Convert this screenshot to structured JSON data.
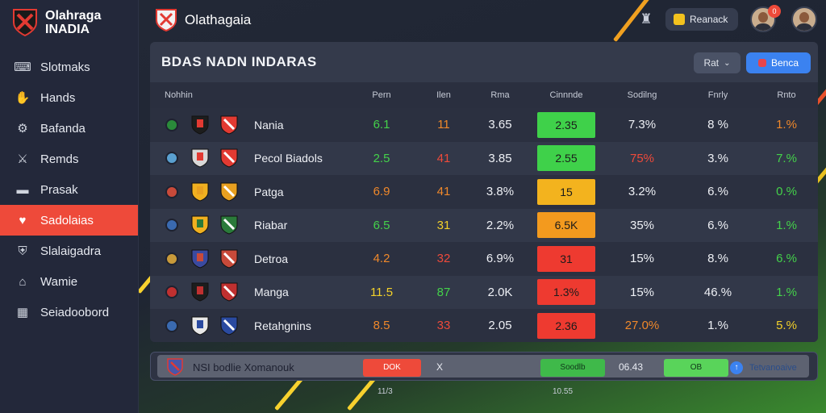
{
  "sidebar": {
    "brand_line1": "Olahraga",
    "brand_line2": "INADIA",
    "items": [
      {
        "label": "Slotmaks",
        "icon": "gamepad-icon"
      },
      {
        "label": "Hands",
        "icon": "hand-icon"
      },
      {
        "label": "Bafanda",
        "icon": "gear-icon"
      },
      {
        "label": "Remds",
        "icon": "sword-icon"
      },
      {
        "label": "Prasak",
        "icon": "card-icon"
      },
      {
        "label": "Sadolaias",
        "icon": "flame-icon",
        "active": true
      },
      {
        "label": "Slalaigadra",
        "icon": "shield-icon"
      },
      {
        "label": "Wamie",
        "icon": "home-icon"
      },
      {
        "label": "Seiadoobord",
        "icon": "board-icon"
      }
    ]
  },
  "topbar": {
    "title": "Olathagaia",
    "button_label": "Reanack",
    "notification_count": "0"
  },
  "panel": {
    "title": "BDAS NADN INDARAS",
    "filter_label": "Rat",
    "primary_label": "Benca",
    "columns": [
      "Nohhin",
      "Pern",
      "Ilen",
      "Rma",
      "Cinnnde",
      "Sodilng",
      "Fnrly",
      "Rnto"
    ],
    "rows": [
      {
        "team": "Nania",
        "pern": "6.1",
        "ilen": "11",
        "rma": "3.65",
        "cinnnde": "2.35",
        "sodilng": "7.3%",
        "fnrly": "8 %",
        "rnto": "1.%",
        "pern_color": "green",
        "ilen_color": "orange",
        "pill_color": "#3fd14a",
        "sodilng_color": "white",
        "rnto_color": "orange"
      },
      {
        "team": "Pecol Biadols",
        "pern": "2.5",
        "ilen": "41",
        "rma": "3.85",
        "cinnnde": "2.55",
        "sodilng": "75%",
        "fnrly": "3.%",
        "rnto": "7.%",
        "pern_color": "green",
        "ilen_color": "red",
        "pill_color": "#3fd14a",
        "sodilng_color": "red",
        "rnto_color": "green"
      },
      {
        "team": "Patga",
        "pern": "6.9",
        "ilen": "41",
        "rma": "3.8%",
        "cinnnde": "15",
        "sodilng": "3.2%",
        "fnrly": "6.%",
        "rnto": "0.%",
        "pern_color": "orange",
        "ilen_color": "orange",
        "pill_color": "#f3b31e",
        "sodilng_color": "white",
        "rnto_color": "green"
      },
      {
        "team": "Riabar",
        "pern": "6.5",
        "ilen": "31",
        "rma": "2.2%",
        "cinnnde": "6.5K",
        "sodilng": "35%",
        "fnrly": "6.%",
        "rnto": "1.%",
        "pern_color": "green",
        "ilen_color": "yellow",
        "pill_color": "#f39a1e",
        "sodilng_color": "white",
        "rnto_color": "green"
      },
      {
        "team": "Detroa",
        "pern": "4.2",
        "ilen": "32",
        "rma": "6.9%",
        "cinnnde": "31",
        "sodilng": "15%",
        "fnrly": "8.%",
        "rnto": "6.%",
        "pern_color": "orange",
        "ilen_color": "red",
        "pill_color": "#ee3a30",
        "sodilng_color": "white",
        "rnto_color": "green"
      },
      {
        "team": "Manga",
        "pern": "11.5",
        "ilen": "87",
        "rma": "2.0K",
        "cinnnde": "1.3%",
        "sodilng": "15%",
        "fnrly": "46.%",
        "rnto": "1.%",
        "pern_color": "yellow",
        "ilen_color": "green",
        "pill_color": "#ee3a30",
        "sodilng_color": "white",
        "rnto_color": "green"
      },
      {
        "team": "Retahgnins",
        "pern": "8.5",
        "ilen": "33",
        "rma": "2.05",
        "cinnnde": "2.36",
        "sodilng": "27.0%",
        "fnrly": "1.%",
        "rnto": "5.%",
        "pern_color": "orange",
        "ilen_color": "red",
        "pill_color": "#ee3a30",
        "sodilng_color": "orange",
        "rnto_color": "yellow"
      }
    ]
  },
  "bottom": {
    "label": "NSI bodlie Xomanouk",
    "red_label": "DOK",
    "x_label": "X",
    "green_label": "Soodlb",
    "num_label": "06.43",
    "green2_label": "OB",
    "link_label": "Tetvanoaive",
    "foot1": "11/3",
    "foot2": "10.55"
  },
  "colors": {
    "accent": "#ee4a3a",
    "primary": "#3b82f0",
    "green": "#44d24a",
    "orange": "#f0882a",
    "yellow": "#f2d02a",
    "red": "#ef4a3a"
  }
}
